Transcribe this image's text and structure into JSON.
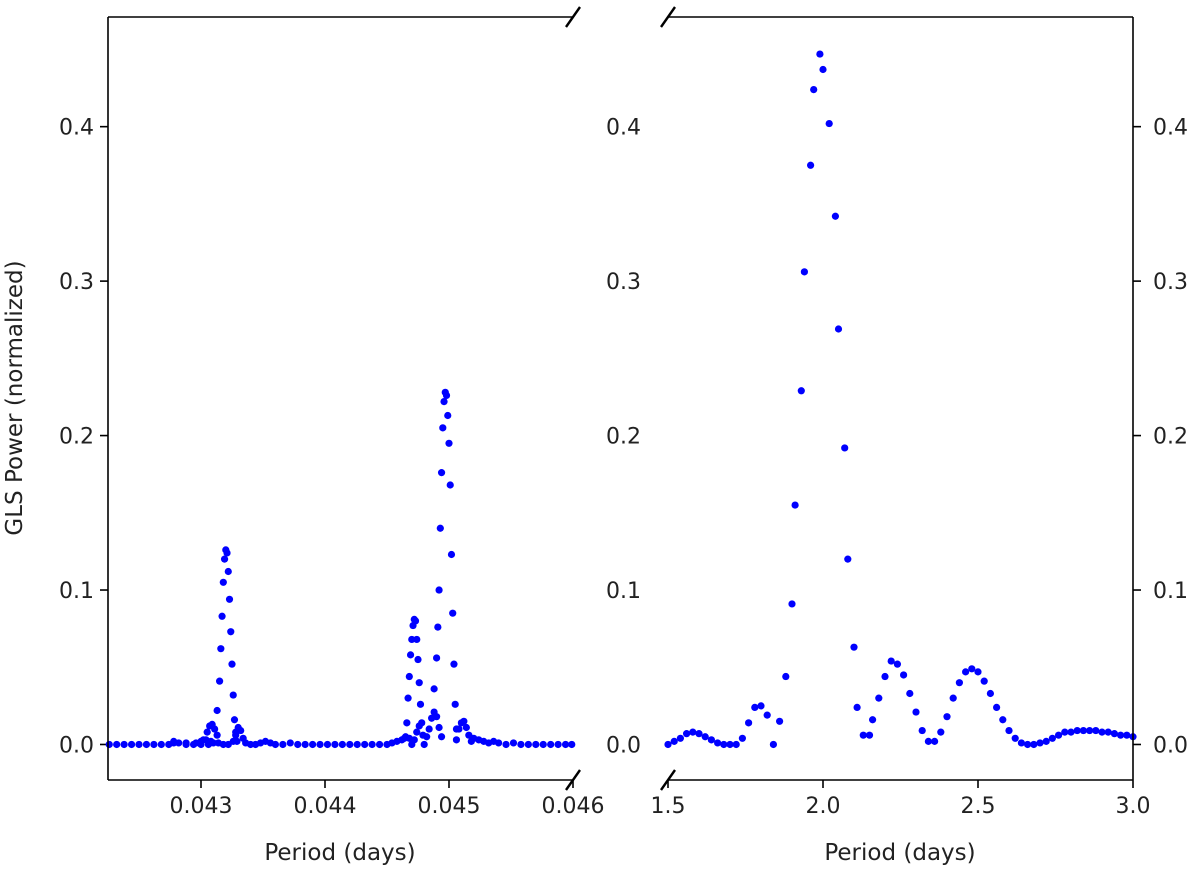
{
  "chart_data": {
    "type": "scatter",
    "ylabel": "GLS Power (normalized)",
    "ylim": [
      -0.023,
      0.471
    ],
    "yticks": [
      "0.0",
      "0.1",
      "0.2",
      "0.3",
      "0.4"
    ],
    "yticks_values": [
      0.0,
      0.1,
      0.2,
      0.3,
      0.4
    ],
    "broken_x_axis": true,
    "marker_color": "#0000ff",
    "panels": [
      {
        "id": "left",
        "xlabel": "Period (days)",
        "xlim": [
          0.04225,
          0.046
        ],
        "xticks": [
          "0.043",
          "0.044",
          "0.045",
          "0.046"
        ],
        "xticks_values": [
          0.043,
          0.044,
          0.045,
          0.046
        ],
        "points": [
          [
            0.04226,
            0.0
          ],
          [
            0.04232,
            0.0
          ],
          [
            0.04238,
            0.0
          ],
          [
            0.04244,
            0.0
          ],
          [
            0.0425,
            0.0
          ],
          [
            0.04256,
            0.0
          ],
          [
            0.04262,
            0.0
          ],
          [
            0.04268,
            0.0
          ],
          [
            0.04274,
            0.0
          ],
          [
            0.04278,
            0.001
          ],
          [
            0.04282,
            0.001
          ],
          [
            0.04288,
            0.0
          ],
          [
            0.04294,
            0.0
          ],
          [
            0.043,
            0.0
          ],
          [
            0.04306,
            0.0
          ],
          [
            0.0431,
            0.001
          ],
          [
            0.04314,
            0.001
          ],
          [
            0.04318,
            0.0
          ],
          [
            0.04322,
            0.0
          ],
          [
            0.04278,
            0.002
          ],
          [
            0.04288,
            0.001
          ],
          [
            0.04296,
            0.001
          ],
          [
            0.043,
            0.002
          ],
          [
            0.04304,
            0.003
          ],
          [
            0.04308,
            0.002
          ],
          [
            0.04305,
            0.008
          ],
          [
            0.04307,
            0.012
          ],
          [
            0.04309,
            0.013
          ],
          [
            0.04311,
            0.01
          ],
          [
            0.04313,
            0.006
          ],
          [
            0.04302,
            0.003
          ],
          [
            0.04313,
            0.022
          ],
          [
            0.04315,
            0.041
          ],
          [
            0.04316,
            0.062
          ],
          [
            0.04317,
            0.083
          ],
          [
            0.04318,
            0.105
          ],
          [
            0.04319,
            0.12
          ],
          [
            0.0432,
            0.126
          ],
          [
            0.04321,
            0.124
          ],
          [
            0.04322,
            0.112
          ],
          [
            0.04323,
            0.094
          ],
          [
            0.04324,
            0.073
          ],
          [
            0.04325,
            0.052
          ],
          [
            0.04326,
            0.032
          ],
          [
            0.04327,
            0.016
          ],
          [
            0.04328,
            0.006
          ],
          [
            0.04329,
            0.002
          ],
          [
            0.04326,
            0.002
          ],
          [
            0.04328,
            0.008
          ],
          [
            0.0433,
            0.011
          ],
          [
            0.04332,
            0.009
          ],
          [
            0.04334,
            0.004
          ],
          [
            0.04336,
            0.001
          ],
          [
            0.0434,
            0.0
          ],
          [
            0.04344,
            0.0
          ],
          [
            0.04348,
            0.001
          ],
          [
            0.04352,
            0.002
          ],
          [
            0.04356,
            0.001
          ],
          [
            0.0436,
            0.0
          ],
          [
            0.04366,
            0.0
          ],
          [
            0.04372,
            0.001
          ],
          [
            0.04378,
            0.0
          ],
          [
            0.04384,
            0.0
          ],
          [
            0.0439,
            0.0
          ],
          [
            0.04396,
            0.0
          ],
          [
            0.04402,
            0.0
          ],
          [
            0.04408,
            0.0
          ],
          [
            0.04414,
            0.0
          ],
          [
            0.0442,
            0.0
          ],
          [
            0.04426,
            0.0
          ],
          [
            0.04432,
            0.0
          ],
          [
            0.04438,
            0.0
          ],
          [
            0.04444,
            0.0
          ],
          [
            0.0445,
            0.0
          ],
          [
            0.04454,
            0.001
          ],
          [
            0.04458,
            0.002
          ],
          [
            0.04462,
            0.003
          ],
          [
            0.04464,
            0.004
          ],
          [
            0.04465,
            0.005
          ],
          [
            0.04466,
            0.014
          ],
          [
            0.04467,
            0.03
          ],
          [
            0.04468,
            0.044
          ],
          [
            0.04469,
            0.058
          ],
          [
            0.0447,
            0.068
          ],
          [
            0.04471,
            0.077
          ],
          [
            0.04472,
            0.081
          ],
          [
            0.04473,
            0.08
          ],
          [
            0.04474,
            0.068
          ],
          [
            0.04475,
            0.055
          ],
          [
            0.04476,
            0.04
          ],
          [
            0.04477,
            0.026
          ],
          [
            0.04478,
            0.014
          ],
          [
            0.04479,
            0.006
          ],
          [
            0.04468,
            0.004
          ],
          [
            0.0447,
            0.0
          ],
          [
            0.04472,
            0.003
          ],
          [
            0.04474,
            0.008
          ],
          [
            0.04476,
            0.012
          ],
          [
            0.0448,
            0.0
          ],
          [
            0.04482,
            0.005
          ],
          [
            0.04484,
            0.01
          ],
          [
            0.04486,
            0.017
          ],
          [
            0.04488,
            0.021
          ],
          [
            0.0449,
            0.018
          ],
          [
            0.04492,
            0.011
          ],
          [
            0.04494,
            0.005
          ],
          [
            0.04488,
            0.036
          ],
          [
            0.0449,
            0.056
          ],
          [
            0.04491,
            0.076
          ],
          [
            0.04492,
            0.1
          ],
          [
            0.04493,
            0.14
          ],
          [
            0.04494,
            0.176
          ],
          [
            0.04495,
            0.205
          ],
          [
            0.04496,
            0.222
          ],
          [
            0.04497,
            0.228
          ],
          [
            0.04498,
            0.226
          ],
          [
            0.04499,
            0.213
          ],
          [
            0.045,
            0.195
          ],
          [
            0.04501,
            0.168
          ],
          [
            0.04502,
            0.123
          ],
          [
            0.04503,
            0.085
          ],
          [
            0.04504,
            0.052
          ],
          [
            0.04505,
            0.026
          ],
          [
            0.04506,
            0.01
          ],
          [
            0.04506,
            0.003
          ],
          [
            0.04508,
            0.01
          ],
          [
            0.0451,
            0.014
          ],
          [
            0.04512,
            0.015
          ],
          [
            0.04514,
            0.011
          ],
          [
            0.04516,
            0.006
          ],
          [
            0.04518,
            0.002
          ],
          [
            0.0452,
            0.004
          ],
          [
            0.04524,
            0.003
          ],
          [
            0.04528,
            0.002
          ],
          [
            0.04532,
            0.001
          ],
          [
            0.04536,
            0.002
          ],
          [
            0.0454,
            0.001
          ],
          [
            0.04546,
            0.0
          ],
          [
            0.04552,
            0.001
          ],
          [
            0.04558,
            0.0
          ],
          [
            0.04564,
            0.0
          ],
          [
            0.0457,
            0.0
          ],
          [
            0.04576,
            0.0
          ],
          [
            0.04582,
            0.0
          ],
          [
            0.04588,
            0.0
          ],
          [
            0.04594,
            0.0
          ],
          [
            0.04599,
            0.0
          ]
        ]
      },
      {
        "id": "right",
        "xlabel": "Period (days)",
        "xlim": [
          1.5,
          3.0
        ],
        "xticks": [
          "1.5",
          "2.0",
          "2.5",
          "3.0"
        ],
        "xticks_values": [
          1.5,
          2.0,
          2.5,
          3.0
        ],
        "points": [
          [
            1.5,
            0.0
          ],
          [
            1.52,
            0.002
          ],
          [
            1.54,
            0.004
          ],
          [
            1.56,
            0.007
          ],
          [
            1.58,
            0.008
          ],
          [
            1.6,
            0.007
          ],
          [
            1.62,
            0.005
          ],
          [
            1.64,
            0.003
          ],
          [
            1.66,
            0.001
          ],
          [
            1.68,
            0.0
          ],
          [
            1.7,
            0.0
          ],
          [
            1.72,
            0.0
          ],
          [
            1.74,
            0.004
          ],
          [
            1.76,
            0.014
          ],
          [
            1.78,
            0.024
          ],
          [
            1.8,
            0.025
          ],
          [
            1.82,
            0.019
          ],
          [
            1.84,
            0.0
          ],
          [
            1.86,
            0.015
          ],
          [
            1.88,
            0.044
          ],
          [
            1.9,
            0.091
          ],
          [
            1.91,
            0.155
          ],
          [
            1.93,
            0.229
          ],
          [
            1.94,
            0.306
          ],
          [
            1.96,
            0.375
          ],
          [
            1.97,
            0.424
          ],
          [
            1.99,
            0.447
          ],
          [
            2.0,
            0.437
          ],
          [
            2.02,
            0.402
          ],
          [
            2.04,
            0.342
          ],
          [
            2.05,
            0.269
          ],
          [
            2.07,
            0.192
          ],
          [
            2.08,
            0.12
          ],
          [
            2.1,
            0.063
          ],
          [
            2.11,
            0.024
          ],
          [
            2.13,
            0.006
          ],
          [
            2.15,
            0.006
          ],
          [
            2.16,
            0.016
          ],
          [
            2.18,
            0.03
          ],
          [
            2.2,
            0.044
          ],
          [
            2.22,
            0.054
          ],
          [
            2.24,
            0.052
          ],
          [
            2.26,
            0.045
          ],
          [
            2.28,
            0.033
          ],
          [
            2.3,
            0.021
          ],
          [
            2.32,
            0.009
          ],
          [
            2.34,
            0.002
          ],
          [
            2.36,
            0.002
          ],
          [
            2.38,
            0.008
          ],
          [
            2.4,
            0.018
          ],
          [
            2.42,
            0.03
          ],
          [
            2.44,
            0.04
          ],
          [
            2.46,
            0.047
          ],
          [
            2.48,
            0.049
          ],
          [
            2.5,
            0.047
          ],
          [
            2.52,
            0.041
          ],
          [
            2.54,
            0.033
          ],
          [
            2.56,
            0.024
          ],
          [
            2.58,
            0.016
          ],
          [
            2.6,
            0.009
          ],
          [
            2.62,
            0.004
          ],
          [
            2.64,
            0.001
          ],
          [
            2.66,
            0.0
          ],
          [
            2.68,
            0.0
          ],
          [
            2.7,
            0.001
          ],
          [
            2.72,
            0.002
          ],
          [
            2.74,
            0.004
          ],
          [
            2.76,
            0.006
          ],
          [
            2.78,
            0.008
          ],
          [
            2.8,
            0.008
          ],
          [
            2.82,
            0.009
          ],
          [
            2.84,
            0.009
          ],
          [
            2.86,
            0.009
          ],
          [
            2.88,
            0.009
          ],
          [
            2.9,
            0.008
          ],
          [
            2.92,
            0.008
          ],
          [
            2.94,
            0.007
          ],
          [
            2.96,
            0.006
          ],
          [
            2.98,
            0.006
          ],
          [
            3.0,
            0.005
          ]
        ]
      }
    ]
  }
}
